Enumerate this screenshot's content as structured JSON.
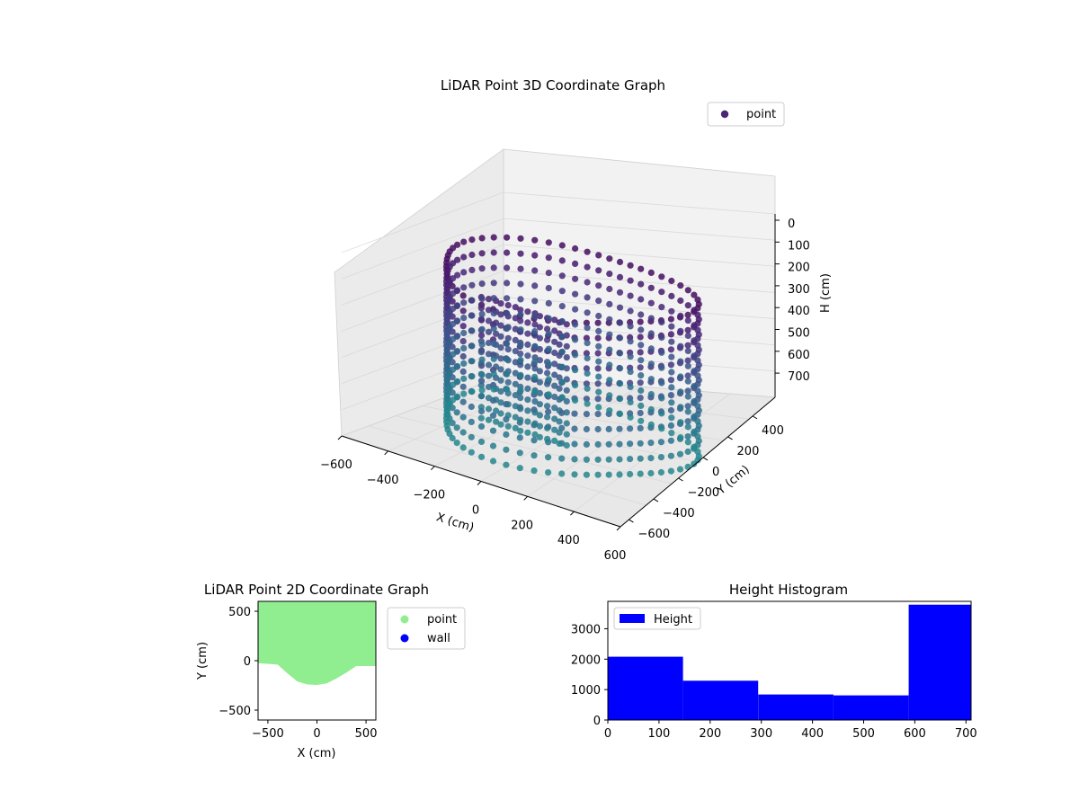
{
  "chart_data": [
    {
      "type": "scatter3d",
      "title": "LiDAR Point 3D Coordinate Graph",
      "xlabel": "X (cm)",
      "ylabel": "Y (cm)",
      "zlabel": "H (cm)",
      "xlim": [
        -600,
        600
      ],
      "ylim": [
        -600,
        600
      ],
      "zlim": [
        -700,
        0
      ],
      "x_ticks": [
        "−600",
        "−400",
        "−200",
        "0",
        "200",
        "400",
        "600"
      ],
      "y_ticks": [
        "−600",
        "−400",
        "−200",
        "0",
        "200",
        "400"
      ],
      "z_ticks": [
        "0",
        "100",
        "200",
        "300",
        "400",
        "500",
        "600",
        "700"
      ],
      "legend": [
        "point"
      ],
      "legend_position": "top-right",
      "colormap": "viridis",
      "grid": true
    },
    {
      "type": "scatter",
      "title": "LiDAR Point 2D Coordinate Graph",
      "xlabel": "X (cm)",
      "ylabel": "Y (cm)",
      "xlim": [
        -600,
        600
      ],
      "ylim": [
        -600,
        600
      ],
      "x_ticks": [
        "−500",
        "0",
        "500"
      ],
      "y_ticks": [
        "500",
        "0",
        "−500"
      ],
      "series": [
        {
          "name": "point",
          "color": "#90ee90"
        },
        {
          "name": "wall",
          "color": "#0000ff"
        }
      ],
      "point_boundary": [
        [
          -600,
          -25
        ],
        [
          -400,
          -40
        ],
        [
          -300,
          -130
        ],
        [
          -200,
          -210
        ],
        [
          -100,
          -240
        ],
        [
          0,
          -245
        ],
        [
          100,
          -230
        ],
        [
          200,
          -180
        ],
        [
          300,
          -120
        ],
        [
          400,
          -55
        ],
        [
          600,
          -55
        ]
      ],
      "legend_position": "outside-right"
    },
    {
      "type": "bar",
      "title": "Height Histogram",
      "xlim": [
        0,
        710
      ],
      "ylim": [
        0,
        3900
      ],
      "x_ticks": [
        "0",
        "100",
        "200",
        "300",
        "400",
        "500",
        "600",
        "700"
      ],
      "y_ticks": [
        "0",
        "1000",
        "2000",
        "3000"
      ],
      "bin_edges": [
        0,
        147,
        294,
        441,
        588,
        710
      ],
      "series": [
        {
          "name": "Height",
          "color": "#0000ff",
          "values": [
            2080,
            1290,
            840,
            810,
            3790
          ]
        }
      ],
      "legend_position": "top-left"
    }
  ]
}
